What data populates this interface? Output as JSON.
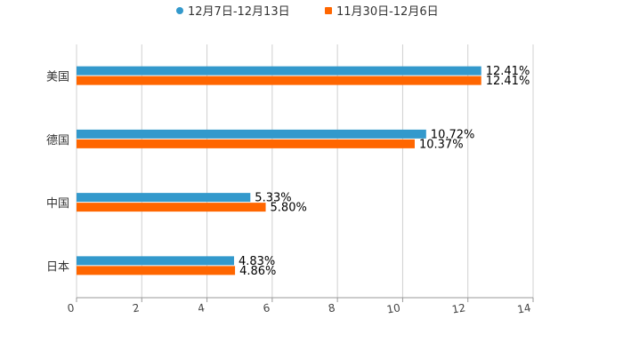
{
  "chart_data": {
    "type": "bar",
    "orientation": "horizontal",
    "categories": [
      "美国",
      "德国",
      "中国",
      "日本"
    ],
    "series": [
      {
        "name": "12月7日-12月13日",
        "color": "#3399cc",
        "values": [
          12.41,
          10.72,
          5.33,
          4.83
        ],
        "labels": [
          "12.41%",
          "10.72%",
          "5.33%",
          "4.83%"
        ]
      },
      {
        "name": "11月30日-12月6日",
        "color": "#ff6600",
        "values": [
          12.41,
          10.37,
          5.8,
          4.86
        ],
        "labels": [
          "12.41%",
          "10.37%",
          "5.80%",
          "4.86%"
        ]
      }
    ],
    "xlim": [
      0,
      14
    ],
    "xticks": [
      "0",
      "2",
      "4",
      "6",
      "8",
      "10",
      "12",
      "14"
    ],
    "title": "",
    "xlabel": "",
    "ylabel": "",
    "grid": true,
    "legend": "top-center"
  }
}
